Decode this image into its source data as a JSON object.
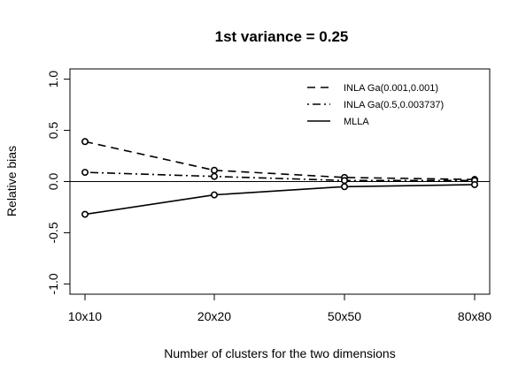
{
  "chart_data": {
    "type": "line",
    "title": "1st variance = 0.25",
    "xlabel": "Number of clusters for the two dimensions",
    "ylabel": "Relative bias",
    "categories": [
      "10x10",
      "20x20",
      "50x50",
      "80x80"
    ],
    "ylim": [
      -1.1,
      1.1
    ],
    "yticks": [
      "-1.0",
      "-0.5",
      "0.0",
      "0.5",
      "1.0"
    ],
    "ytick_values": [
      -1.0,
      -0.5,
      0.0,
      0.5,
      1.0
    ],
    "reference_line": 0.0,
    "grid": false,
    "legend_position": "top-right",
    "series": [
      {
        "name": "INLA Ga(0.001,0.001)",
        "line_style": "dashed",
        "values": [
          0.39,
          0.11,
          0.04,
          0.02
        ]
      },
      {
        "name": "INLA Ga(0.5,0.003737)",
        "line_style": "dot-dash",
        "values": [
          0.09,
          0.05,
          0.01,
          0.01
        ]
      },
      {
        "name": "MLLA",
        "line_style": "solid",
        "values": [
          -0.32,
          -0.13,
          -0.05,
          -0.03
        ]
      }
    ],
    "colors": {
      "line": "#000000",
      "background": "#ffffff"
    }
  }
}
